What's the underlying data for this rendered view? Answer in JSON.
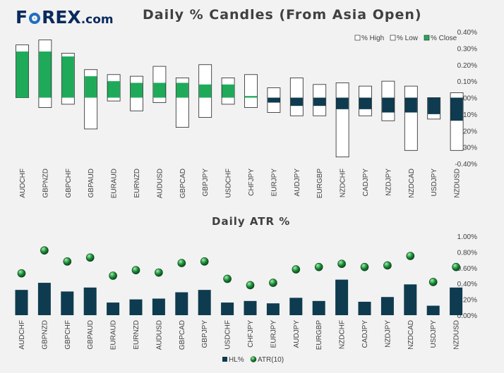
{
  "brand": {
    "logo_text": "FOREX",
    "logo_domain": ".com",
    "logo_o": "O"
  },
  "colors": {
    "close": "#1faa59",
    "close_down": "#0e3b4f",
    "hl": "#0e3b4f",
    "atr": "#1d8f3c",
    "axis_text": "#404040"
  },
  "chart_data": [
    {
      "type": "bar",
      "subtype": "range-candle",
      "title": "Daily % Candles (From Asia Open)",
      "categories": [
        "AUDCHF",
        "GBPNZD",
        "GBPCHF",
        "GBPAUD",
        "EURAUD",
        "EURNZD",
        "AUDUSD",
        "GBPCAD",
        "GBPJPY",
        "USDCHF",
        "CHFJPY",
        "EURJPY",
        "AUDJPY",
        "EURGBP",
        "NZDCHF",
        "CADJPY",
        "NZDJPY",
        "NZDCAD",
        "USDJPY",
        "NZDUSD"
      ],
      "series": [
        {
          "name": "% High",
          "values": [
            0.32,
            0.35,
            0.27,
            0.17,
            0.14,
            0.13,
            0.19,
            0.12,
            0.2,
            0.12,
            0.14,
            0.06,
            0.12,
            0.08,
            0.09,
            0.07,
            0.1,
            0.07,
            0.0,
            0.03
          ]
        },
        {
          "name": "% Low",
          "values": [
            0.0,
            -0.06,
            -0.04,
            -0.19,
            -0.02,
            -0.08,
            -0.03,
            -0.18,
            -0.12,
            -0.04,
            -0.06,
            -0.09,
            -0.11,
            -0.11,
            -0.36,
            -0.11,
            -0.14,
            -0.32,
            -0.13,
            -0.32
          ]
        },
        {
          "name": "% Close",
          "values": [
            0.28,
            0.28,
            0.25,
            0.13,
            0.1,
            0.09,
            0.09,
            0.09,
            0.08,
            0.08,
            0.01,
            -0.03,
            -0.05,
            -0.05,
            -0.07,
            -0.07,
            -0.09,
            -0.09,
            -0.1,
            -0.14
          ]
        }
      ],
      "legend": [
        "% High",
        "% Low",
        "% Close"
      ],
      "legend_position": "top-right",
      "ylim": [
        -0.4,
        0.4
      ],
      "yticks": [
        "0.40%",
        "0.30%",
        "0.20%",
        "0.10%",
        "0.00%",
        "-0.10%",
        "-0.20%",
        "-0.30%",
        "-0.40%"
      ],
      "ytick_values": [
        0.4,
        0.3,
        0.2,
        0.1,
        0.0,
        -0.1,
        -0.2,
        -0.3,
        -0.4
      ]
    },
    {
      "type": "bar",
      "title": "Daily ATR %",
      "categories": [
        "AUDCHF",
        "GBPNZD",
        "GBPCHF",
        "GBPAUD",
        "EURAUD",
        "EURNZD",
        "AUDUSD",
        "GBPCAD",
        "GBPJPY",
        "USDCHF",
        "CHFJPY",
        "EURJPY",
        "AUDJPY",
        "EURGBP",
        "NZDCHF",
        "CADJPY",
        "NZDJPY",
        "NZDCAD",
        "USDJPY",
        "NZDUSD"
      ],
      "series": [
        {
          "name": "HL%",
          "kind": "bar",
          "values": [
            0.32,
            0.41,
            0.3,
            0.35,
            0.16,
            0.2,
            0.21,
            0.29,
            0.32,
            0.16,
            0.18,
            0.15,
            0.22,
            0.18,
            0.45,
            0.17,
            0.23,
            0.39,
            0.12,
            0.35
          ]
        },
        {
          "name": "ATR(10)",
          "kind": "marker",
          "values": [
            0.53,
            0.82,
            0.68,
            0.73,
            0.5,
            0.57,
            0.54,
            0.66,
            0.68,
            0.46,
            0.38,
            0.41,
            0.58,
            0.61,
            0.65,
            0.61,
            0.63,
            0.75,
            0.42,
            0.61
          ]
        }
      ],
      "legend": [
        "HL%",
        "ATR(10)"
      ],
      "legend_position": "bottom-center",
      "ylim": [
        0.0,
        1.0
      ],
      "yticks": [
        "1.00%",
        "0.80%",
        "0.60%",
        "0.40%",
        "0.20%",
        "0.00%"
      ],
      "ytick_values": [
        1.0,
        0.8,
        0.6,
        0.4,
        0.2,
        0.0
      ]
    }
  ]
}
